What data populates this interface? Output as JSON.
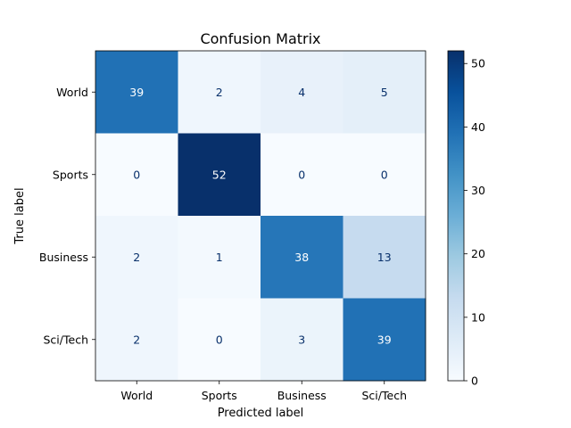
{
  "chart_data": {
    "type": "heatmap",
    "title": "Confusion Matrix",
    "xlabel": "Predicted label",
    "ylabel": "True label",
    "x_categories": [
      "World",
      "Sports",
      "Business",
      "Sci/Tech"
    ],
    "y_categories": [
      "World",
      "Sports",
      "Business",
      "Sci/Tech"
    ],
    "values": [
      [
        39,
        2,
        4,
        5
      ],
      [
        0,
        52,
        0,
        0
      ],
      [
        2,
        1,
        38,
        13
      ],
      [
        2,
        0,
        3,
        39
      ]
    ],
    "colormap": "Blues",
    "colorbar": {
      "range": [
        0,
        52
      ],
      "ticks": [
        0,
        10,
        20,
        30,
        40,
        50
      ]
    }
  }
}
